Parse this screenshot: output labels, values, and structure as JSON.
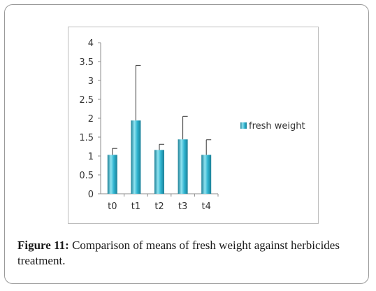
{
  "chart_data": {
    "type": "bar",
    "categories": [
      "t0",
      "t1",
      "t2",
      "t3",
      "t4"
    ],
    "series": [
      {
        "name": "fresh weight",
        "values": [
          1.03,
          1.94,
          1.16,
          1.44,
          1.03
        ],
        "errors": [
          0.17,
          1.46,
          0.15,
          0.61,
          0.4
        ]
      }
    ],
    "yticks": [
      "0",
      "0.5",
      "1",
      "1.5",
      "2",
      "2.5",
      "3",
      "3.5",
      "4"
    ],
    "ylim": [
      0,
      4
    ],
    "legend_position": "right",
    "bar_color": "#2eb4d0",
    "bar_highlight": "#8fe3f0",
    "bar_shadow": "#1b7f96"
  },
  "caption": {
    "label": "Figure 11:",
    "text": " Comparison of means of fresh weight against herbicides treatment."
  }
}
